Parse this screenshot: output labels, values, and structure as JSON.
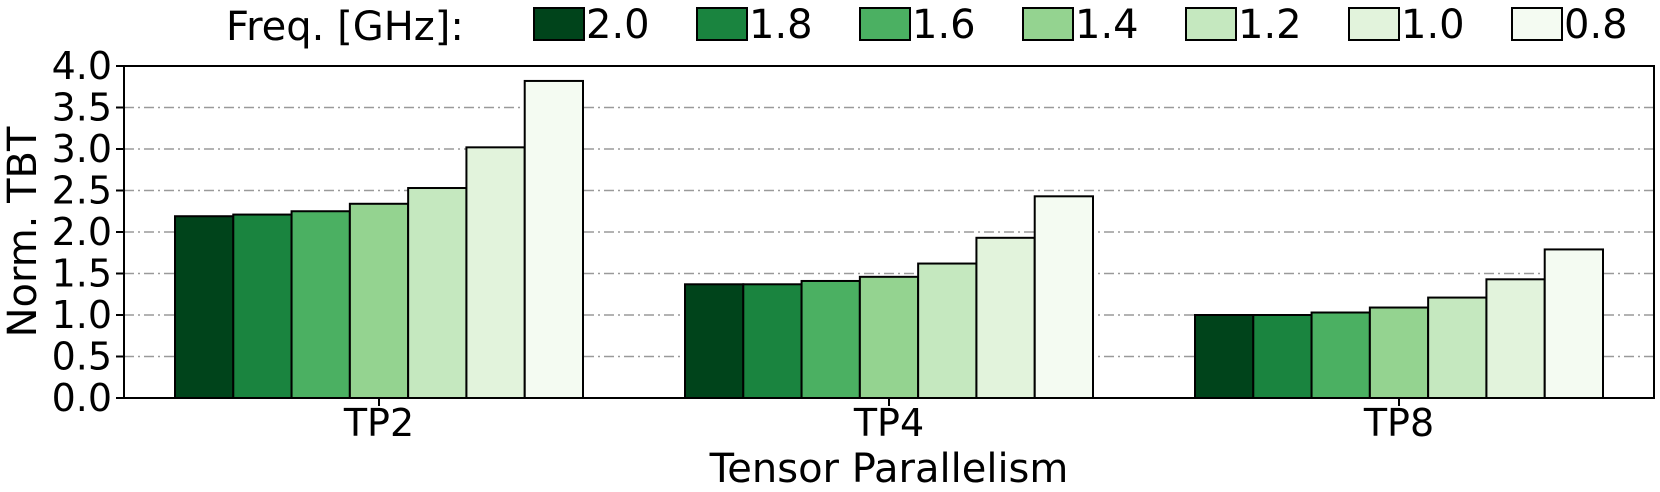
{
  "legend": {
    "title": "Freq. [GHz]:",
    "placement": "top"
  },
  "chart_data": {
    "type": "bar",
    "xlabel": "Tensor Parallelism",
    "ylabel": "Norm. TBT",
    "categories": [
      "TP2",
      "TP4",
      "TP8"
    ],
    "ylim": [
      0,
      4.0
    ],
    "yticks": [
      0.0,
      0.5,
      1.0,
      1.5,
      2.0,
      2.5,
      3.0,
      3.5,
      4.0
    ],
    "ytick_labels": [
      "0.0",
      "0.5",
      "1.0",
      "1.5",
      "2.0",
      "2.5",
      "3.0",
      "3.5",
      "4.0"
    ],
    "grid": "horizontal dash-dot",
    "series": [
      {
        "name": "2.0",
        "color": "#00441b",
        "values": [
          2.19,
          1.37,
          1.0
        ]
      },
      {
        "name": "1.8",
        "color": "#1a843f",
        "values": [
          2.21,
          1.37,
          1.0
        ]
      },
      {
        "name": "1.6",
        "color": "#4bb062",
        "values": [
          2.25,
          1.41,
          1.03
        ]
      },
      {
        "name": "1.4",
        "color": "#94d390",
        "values": [
          2.34,
          1.46,
          1.09
        ]
      },
      {
        "name": "1.2",
        "color": "#c5e8bf",
        "values": [
          2.53,
          1.62,
          1.21
        ]
      },
      {
        "name": "1.0",
        "color": "#e2f3dc",
        "values": [
          3.02,
          1.93,
          1.43
        ]
      },
      {
        "name": "0.8",
        "color": "#f4fbf2",
        "values": [
          3.82,
          2.43,
          1.79
        ]
      }
    ]
  }
}
